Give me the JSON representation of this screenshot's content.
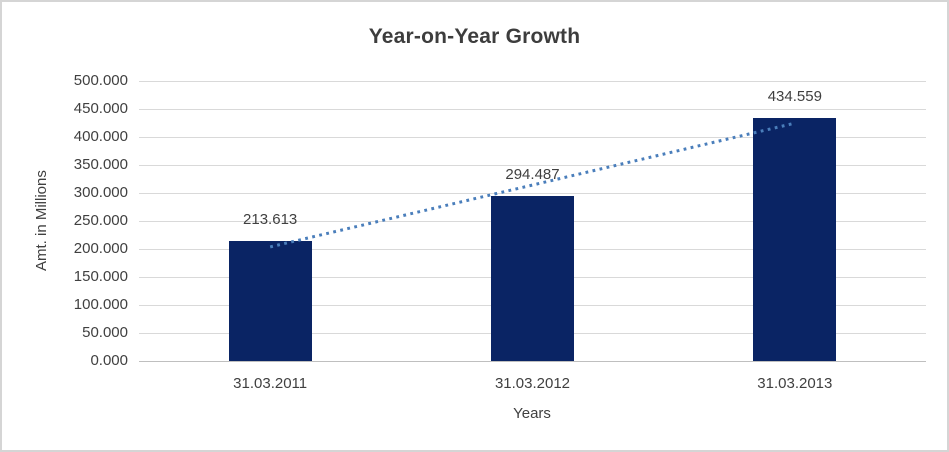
{
  "chart_data": {
    "type": "bar",
    "title": "Year-on-Year Growth",
    "xlabel": "Years",
    "ylabel": "Amt. in Millions",
    "categories": [
      "31.03.2011",
      "31.03.2012",
      "31.03.2013"
    ],
    "values": [
      213.613,
      294.487,
      434.559
    ],
    "data_labels": [
      "213.613",
      "294.487",
      "434.559"
    ],
    "ylim": [
      0,
      500
    ],
    "ytick_step": 50,
    "ytick_labels": [
      "0.000",
      "50.000",
      "100.000",
      "150.000",
      "200.000",
      "250.000",
      "300.000",
      "350.000",
      "400.000",
      "450.000",
      "500.000"
    ],
    "grid": true,
    "legend": "none",
    "trendline": {
      "type": "linear",
      "style": "dotted",
      "color": "#4a7ebb"
    },
    "colors": {
      "bar": "#0a2464",
      "gridline": "#d9d9d9",
      "axis_line": "#bfbfbf",
      "text": "#404040",
      "title_text": "#3d3d3d",
      "background": "#ffffff",
      "border": "#d5d5d5"
    }
  }
}
